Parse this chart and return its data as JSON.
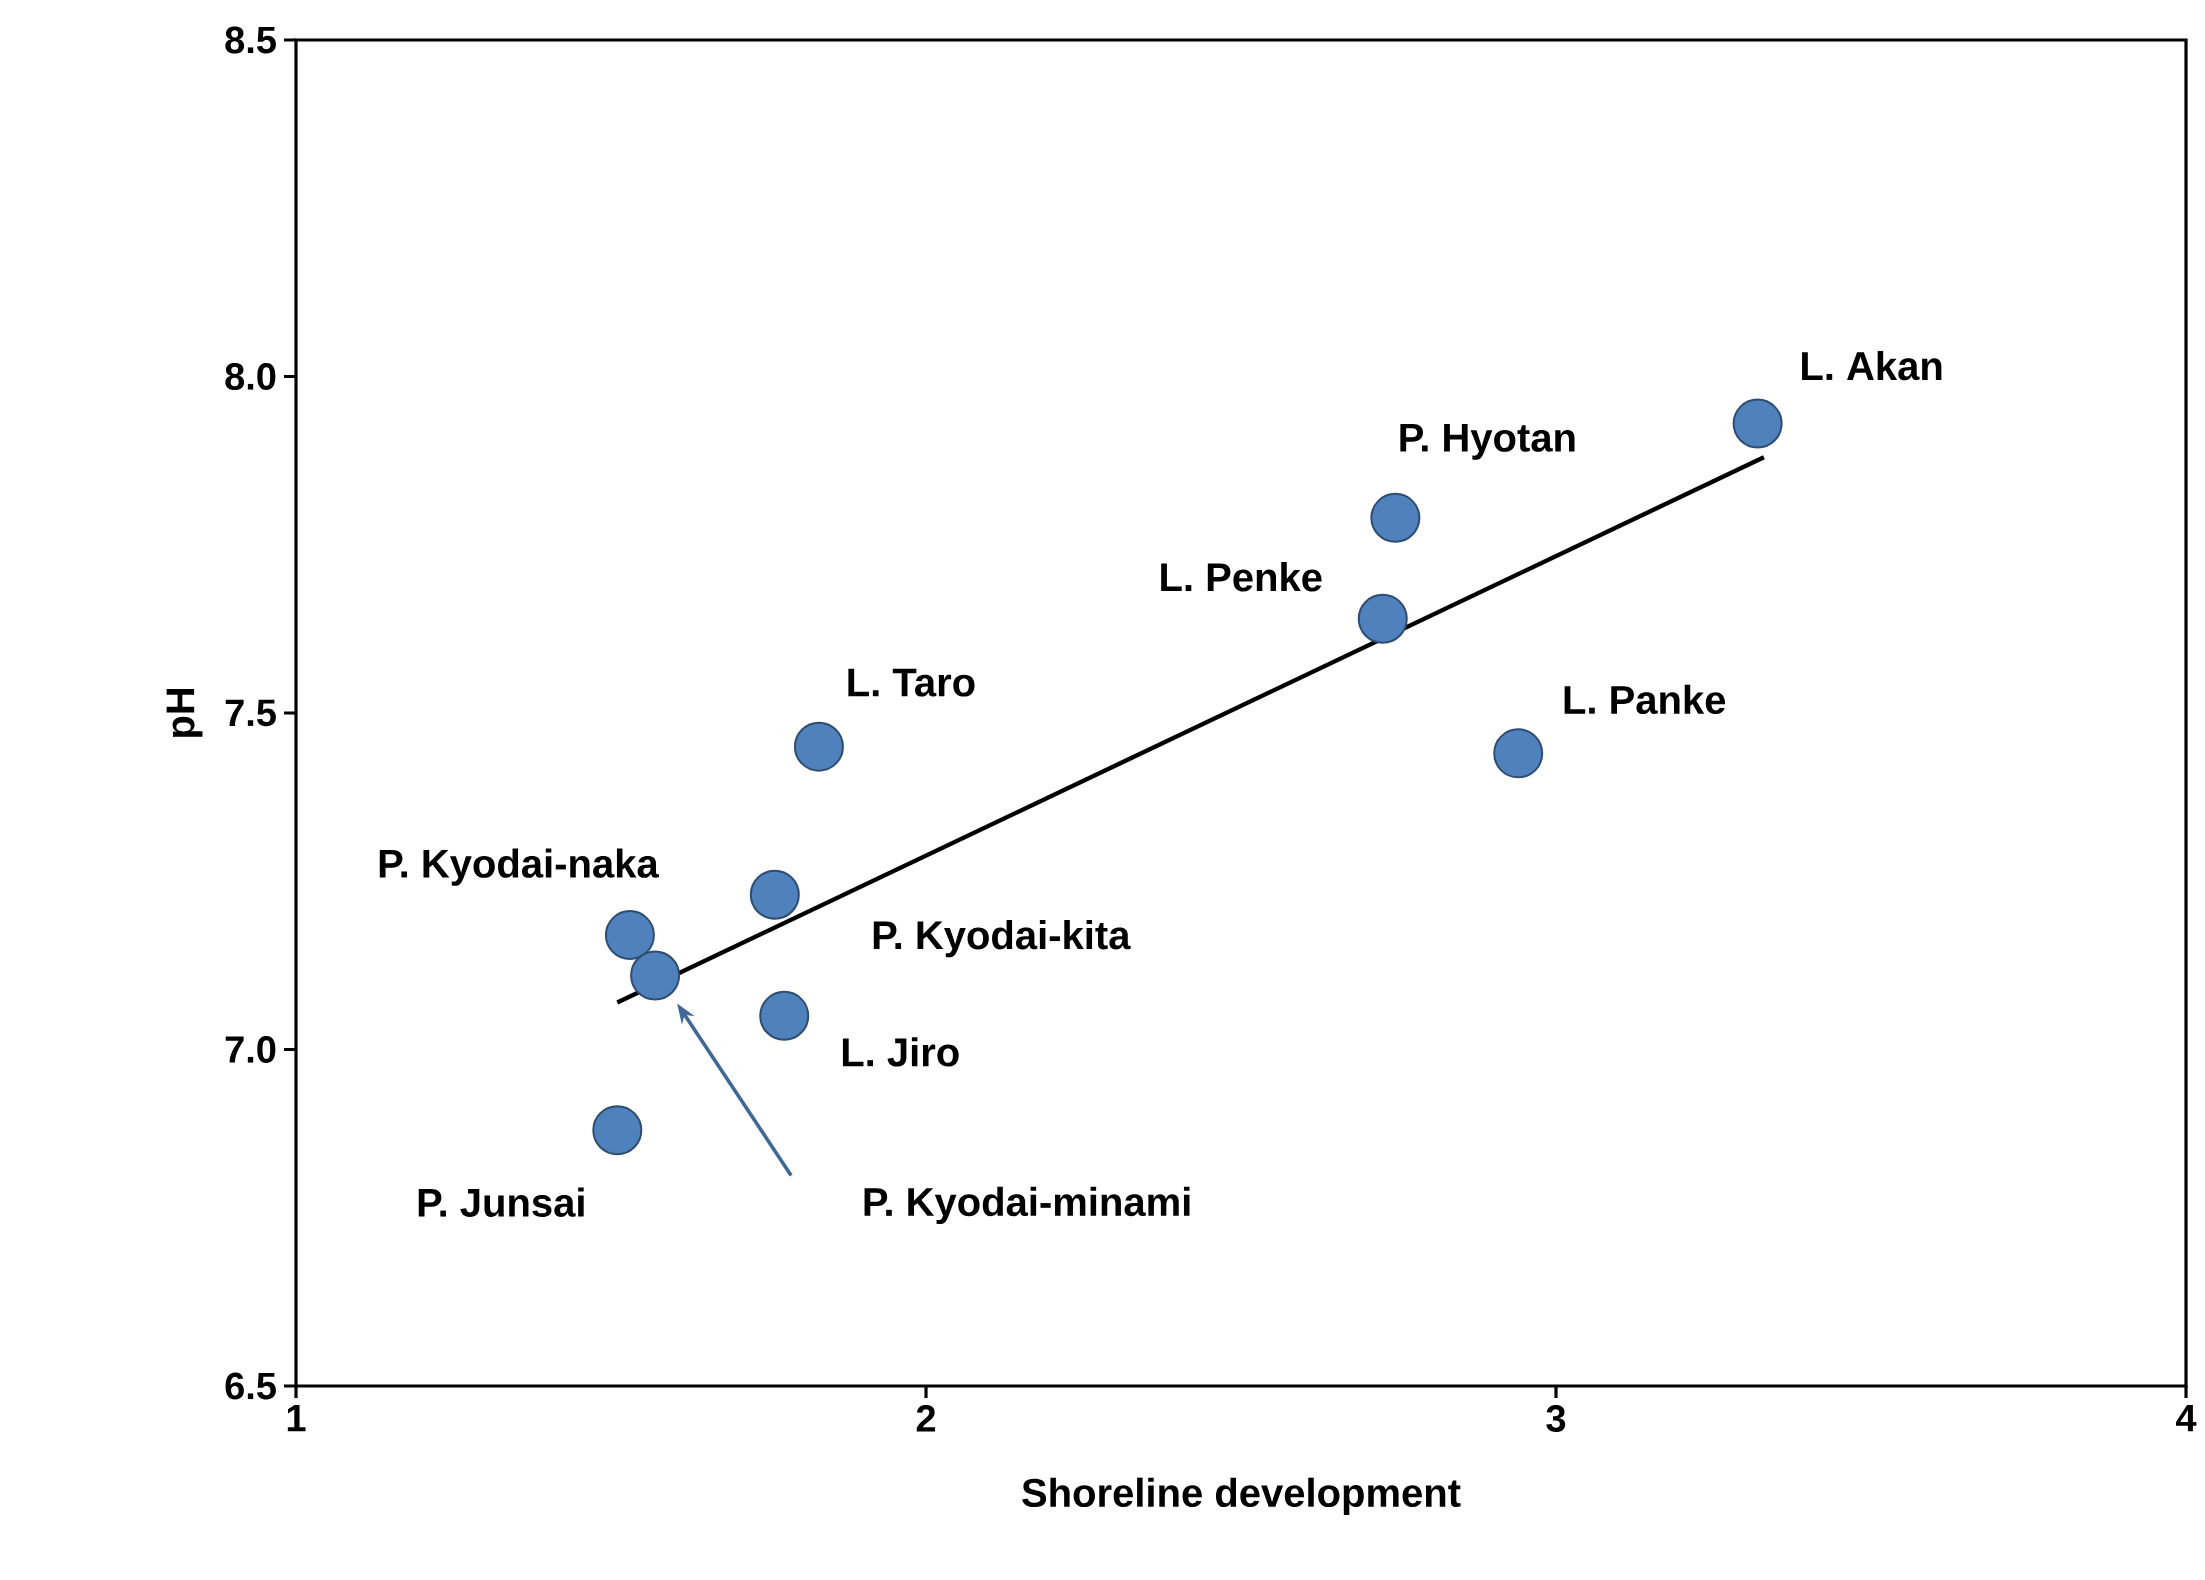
{
  "chart_data": {
    "type": "scatter",
    "xlabel": "Shoreline development",
    "ylabel": "pH",
    "xlim": [
      1,
      4
    ],
    "xticks": [
      1,
      2,
      3,
      4
    ],
    "ylim": [
      6.5,
      8.5
    ],
    "yticks": [
      {
        "value": 6.5,
        "label": "6.5"
      },
      {
        "value": 7,
        "label": "7.0"
      },
      {
        "value": 7.5,
        "label": "7.5"
      },
      {
        "value": 8,
        "label": "8.0"
      },
      {
        "value": 8.5,
        "label": "8.5"
      }
    ],
    "grid": false,
    "marker": "circle",
    "series": [
      {
        "color": "#4f81bd",
        "x": [
          3.32,
          2.745,
          2.725,
          2.94,
          1.83,
          1.76,
          1.53,
          1.57,
          1.775,
          1.51
        ],
        "values": [
          7.93,
          7.79,
          7.64,
          7.44,
          7.45,
          7.23,
          7.17,
          7.11,
          7.05,
          6.88
        ]
      },
      {
        "type": "line",
        "color": "#000000",
        "marker": "none",
        "line_style": "solid",
        "x": [
          1.51,
          3.33
        ],
        "values": [
          7.07,
          7.88
        ]
      }
    ],
    "annotations": [
      {
        "text": "L. Akan",
        "x": 3.32,
        "y": 7.93
      },
      {
        "text": "P. Hyotan",
        "x": 2.745,
        "y": 7.79
      },
      {
        "text": "L. Penke",
        "x": 2.725,
        "y": 7.64
      },
      {
        "text": "L. Panke",
        "x": 2.94,
        "y": 7.44
      },
      {
        "text": "L. Taro",
        "x": 1.83,
        "y": 7.45
      },
      {
        "text": "P. Kyodai-kita",
        "x": 1.76,
        "y": 7.23
      },
      {
        "text": "P. Kyodai-naka",
        "x": 1.53,
        "y": 7.17
      },
      "P. Kyodai-minami",
      {
        "text": "L. Jiro",
        "x": 1.775,
        "y": 7.05
      },
      {
        "text": "P. Junsai",
        "x": 1.51,
        "y": 6.88
      }
    ]
  }
}
